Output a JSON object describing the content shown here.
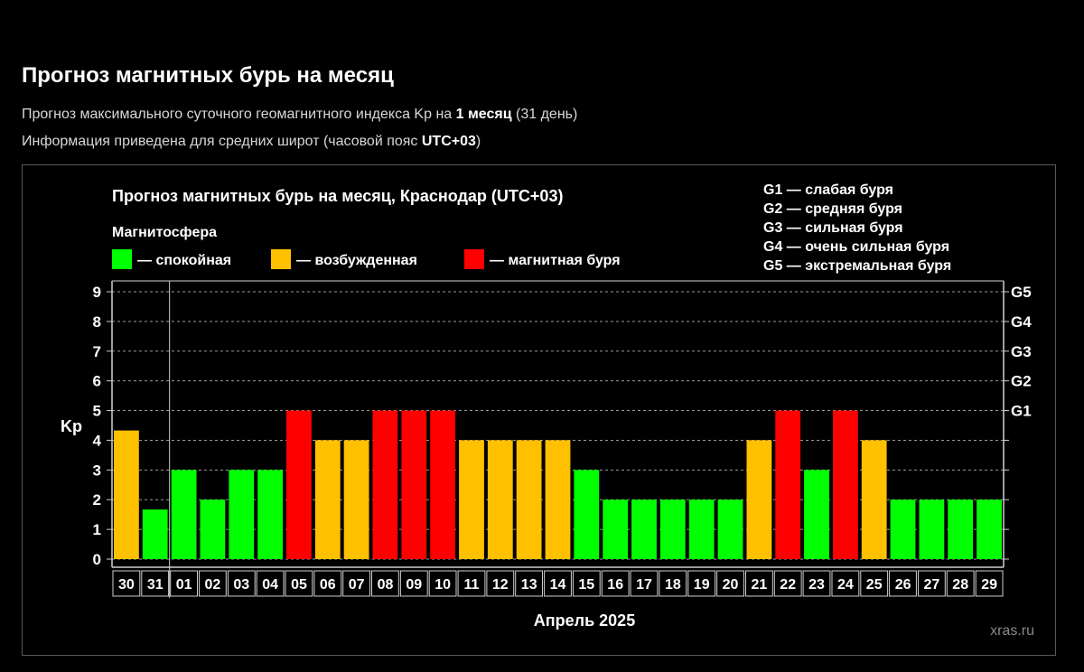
{
  "header": {
    "title": "Прогноз магнитных бурь на месяц",
    "line1_pre": "Прогноз максимального суточного геомагнитного индекса Kp на ",
    "line1_bold": "1 месяц",
    "line1_post": " (31 день)",
    "line2_pre": "Информация приведена для средних широт (часовой пояс ",
    "line2_bold": "UTC+03",
    "line2_post": ")"
  },
  "chart_data": {
    "type": "bar",
    "title": "Прогноз магнитных бурь на месяц, Краснодар (UTC+03)",
    "legend_title": "Магнитосфера",
    "legend": [
      {
        "label": "— спокойная",
        "color": "#00ff00",
        "key": "calm"
      },
      {
        "label": "— возбужденная",
        "color": "#ffc000",
        "key": "excited"
      },
      {
        "label": "— магнитная буря",
        "color": "#ff0000",
        "key": "storm"
      }
    ],
    "storm_scale": [
      "G1 — слабая буря",
      "G2 — средняя буря",
      "G3 — сильная буря",
      "G4 — очень сильная буря",
      "G5 — экстремальная буря"
    ],
    "ylabel": "Kp",
    "xlabel": "Апрель 2025",
    "ylim": [
      0,
      9
    ],
    "yticks": [
      "0",
      "1",
      "2",
      "3",
      "4",
      "5",
      "6",
      "7",
      "8",
      "9"
    ],
    "right_ticks": [
      {
        "kp": 5,
        "label": "G1"
      },
      {
        "kp": 6,
        "label": "G2"
      },
      {
        "kp": 7,
        "label": "G3"
      },
      {
        "kp": 8,
        "label": "G4"
      },
      {
        "kp": 9,
        "label": "G5"
      }
    ],
    "grid": true,
    "legend_position": "top",
    "categories": [
      "30",
      "31",
      "01",
      "02",
      "03",
      "04",
      "05",
      "06",
      "07",
      "08",
      "09",
      "10",
      "11",
      "12",
      "13",
      "14",
      "15",
      "16",
      "17",
      "18",
      "19",
      "20",
      "21",
      "22",
      "23",
      "24",
      "25",
      "26",
      "27",
      "28",
      "29"
    ],
    "values": [
      4.33,
      1.67,
      3,
      2,
      3,
      3,
      5,
      4,
      4,
      5,
      5,
      5,
      4,
      4,
      4,
      4,
      3,
      2,
      2,
      2,
      2,
      2,
      4,
      5,
      3,
      5,
      4,
      2,
      2,
      2,
      2
    ],
    "levels": [
      "excited",
      "calm",
      "calm",
      "calm",
      "calm",
      "calm",
      "storm",
      "excited",
      "excited",
      "storm",
      "storm",
      "storm",
      "excited",
      "excited",
      "excited",
      "excited",
      "calm",
      "calm",
      "calm",
      "calm",
      "calm",
      "calm",
      "excited",
      "storm",
      "calm",
      "storm",
      "excited",
      "calm",
      "calm",
      "calm",
      "calm"
    ],
    "watermark": "xras.ru"
  }
}
